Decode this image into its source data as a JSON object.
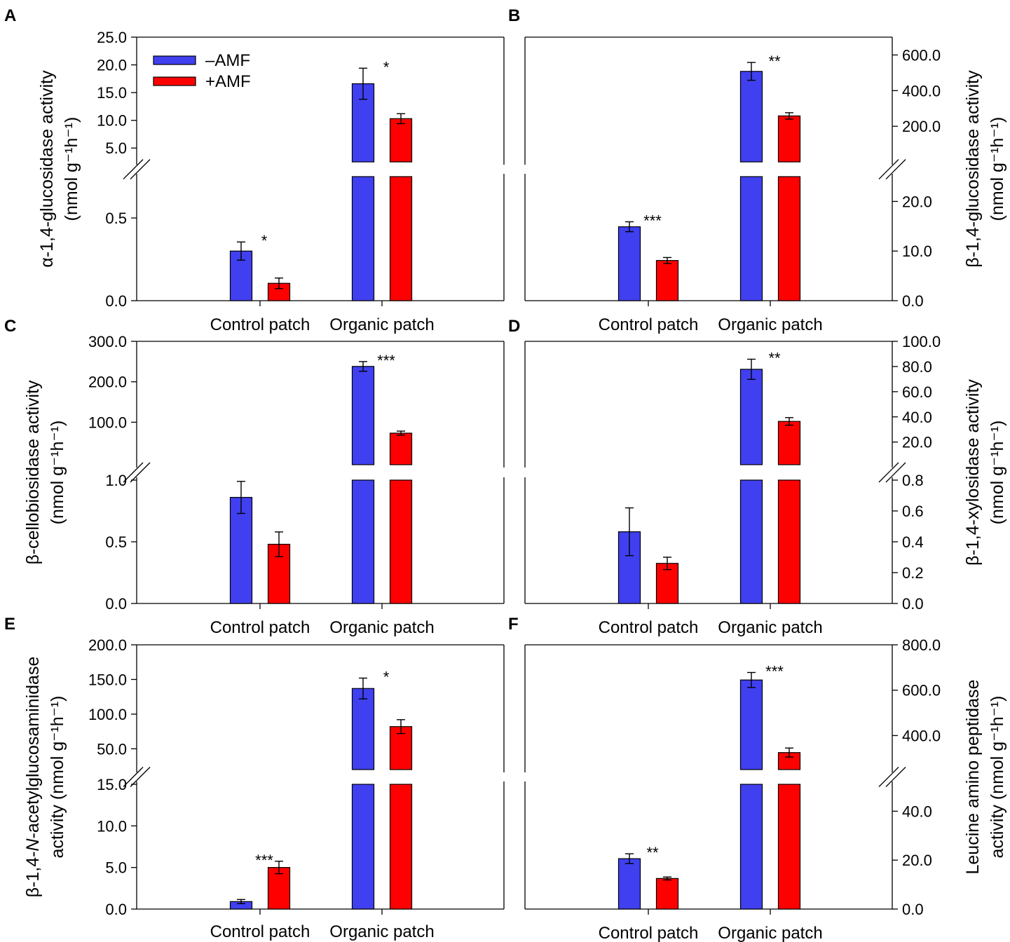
{
  "figure": {
    "series_colors": {
      "minus_amf": "#4040f0",
      "plus_amf": "#ff0000"
    },
    "legend": [
      {
        "label": "–AMF",
        "color": "#4040f0"
      },
      {
        "label": "+AMF",
        "color": "#ff0000"
      }
    ]
  },
  "chart_data": [
    {
      "panel": "A",
      "type": "bar",
      "ylabel_line1": "α-1,4-glucosidase activity",
      "ylabel_line2": "(nmol g⁻¹h⁻¹)",
      "categories": [
        "Control patch",
        "Organic patch"
      ],
      "series": [
        {
          "name": "–AMF",
          "values": [
            0.3,
            16.6
          ],
          "errors": [
            0.055,
            2.8
          ]
        },
        {
          "name": "+AMF",
          "values": [
            0.105,
            10.3
          ],
          "errors": [
            0.032,
            0.9
          ]
        }
      ],
      "significance": [
        "*",
        "*"
      ],
      "lower_range": [
        0,
        0.75
      ],
      "upper_range": [
        2.5,
        25
      ],
      "lower_ticks": [
        "0.0",
        "0.5"
      ],
      "upper_ticks": [
        "5.0",
        "10.0",
        "15.0",
        "20.0",
        "25.0"
      ],
      "axis_side": "left"
    },
    {
      "panel": "B",
      "type": "bar",
      "ylabel_line1": "β-1,4-glucosidase activity",
      "ylabel_line2": "(nmol g⁻¹h⁻¹)",
      "categories": [
        "Control patch",
        "Organic patch"
      ],
      "series": [
        {
          "name": "–AMF",
          "values": [
            14.9,
            508
          ],
          "errors": [
            1.0,
            50
          ]
        },
        {
          "name": "+AMF",
          "values": [
            8.1,
            258
          ],
          "errors": [
            0.6,
            18
          ]
        }
      ],
      "significance": [
        "***",
        "**"
      ],
      "lower_range": [
        0,
        25
      ],
      "upper_range": [
        0,
        700
      ],
      "lower_ticks": [
        "0.0",
        "10.0",
        "20.0"
      ],
      "upper_ticks": [
        "200.0",
        "400.0",
        "600.0"
      ],
      "axis_side": "right"
    },
    {
      "panel": "C",
      "type": "bar",
      "ylabel_line1": "β-cellobiosidase activity",
      "ylabel_line2": "(nmol g⁻¹h⁻¹)",
      "categories": [
        "Control patch",
        "Organic patch"
      ],
      "series": [
        {
          "name": "–AMF",
          "values": [
            0.86,
            238
          ],
          "errors": [
            0.13,
            12
          ]
        },
        {
          "name": "+AMF",
          "values": [
            0.48,
            73
          ],
          "errors": [
            0.1,
            5
          ]
        }
      ],
      "significance": [
        "",
        "***"
      ],
      "lower_range": [
        0,
        1
      ],
      "upper_range": [
        -5,
        300
      ],
      "lower_ticks": [
        "0.0",
        "0.5",
        "1.0"
      ],
      "upper_ticks": [
        "100.0",
        "200.0",
        "300.0"
      ],
      "axis_side": "left"
    },
    {
      "panel": "D",
      "type": "bar",
      "ylabel_line1": "β-1,4-xylosidase activity",
      "ylabel_line2": "(nmol g⁻¹h⁻¹)",
      "categories": [
        "Control patch",
        "Organic patch"
      ],
      "series": [
        {
          "name": "–AMF",
          "values": [
            0.465,
            77.8
          ],
          "errors": [
            0.155,
            8
          ]
        },
        {
          "name": "+AMF",
          "values": [
            0.26,
            36.4
          ],
          "errors": [
            0.04,
            3
          ]
        }
      ],
      "significance": [
        "",
        "**"
      ],
      "lower_range": [
        0,
        0.8
      ],
      "upper_range": [
        2,
        100
      ],
      "lower_ticks": [
        "0.0",
        "0.2",
        "0.4",
        "0.6",
        "0.8"
      ],
      "upper_ticks": [
        "20.0",
        "40.0",
        "60.0",
        "80.0",
        "100.0"
      ],
      "axis_side": "right"
    },
    {
      "panel": "E",
      "type": "bar",
      "ylabel_line1": "β-1,4-N-acetylglucosaminidase",
      "ylabel_line1_pre": "β-1,4-",
      "ylabel_line1_italic": "N",
      "ylabel_line1_post": "-acetylglucosaminidase",
      "ylabel_line2": "activity (nmol g⁻¹h⁻¹)",
      "categories": [
        "Control patch",
        "Organic patch"
      ],
      "series": [
        {
          "name": "–AMF",
          "values": [
            0.9,
            137
          ],
          "errors": [
            0.25,
            15
          ]
        },
        {
          "name": "+AMF",
          "values": [
            5.0,
            82
          ],
          "errors": [
            0.75,
            10
          ]
        }
      ],
      "significance": [
        "***",
        "*"
      ],
      "lower_range": [
        0,
        15
      ],
      "upper_range": [
        20,
        200
      ],
      "lower_ticks": [
        "0.0",
        "5.0",
        "10.0",
        "15.0"
      ],
      "upper_ticks": [
        "50.0",
        "100.0",
        "150.0",
        "200.0"
      ],
      "axis_side": "left"
    },
    {
      "panel": "F",
      "type": "bar",
      "ylabel_line1": "Leucine amino peptidase",
      "ylabel_line2": "activity (nmol g⁻¹h⁻¹)",
      "categories": [
        "Control patch",
        "Organic patch"
      ],
      "series": [
        {
          "name": "–AMF",
          "values": [
            20.6,
            645
          ],
          "errors": [
            2.0,
            33
          ]
        },
        {
          "name": "+AMF",
          "values": [
            12.5,
            325
          ],
          "errors": [
            0.6,
            20
          ]
        }
      ],
      "significance": [
        "**",
        "***"
      ],
      "lower_range": [
        0,
        51
      ],
      "upper_range": [
        250,
        800
      ],
      "lower_ticks": [
        "0.0",
        "20.0",
        "40.0"
      ],
      "upper_ticks": [
        "400.0",
        "600.0",
        "800.0"
      ],
      "axis_side": "right"
    }
  ]
}
